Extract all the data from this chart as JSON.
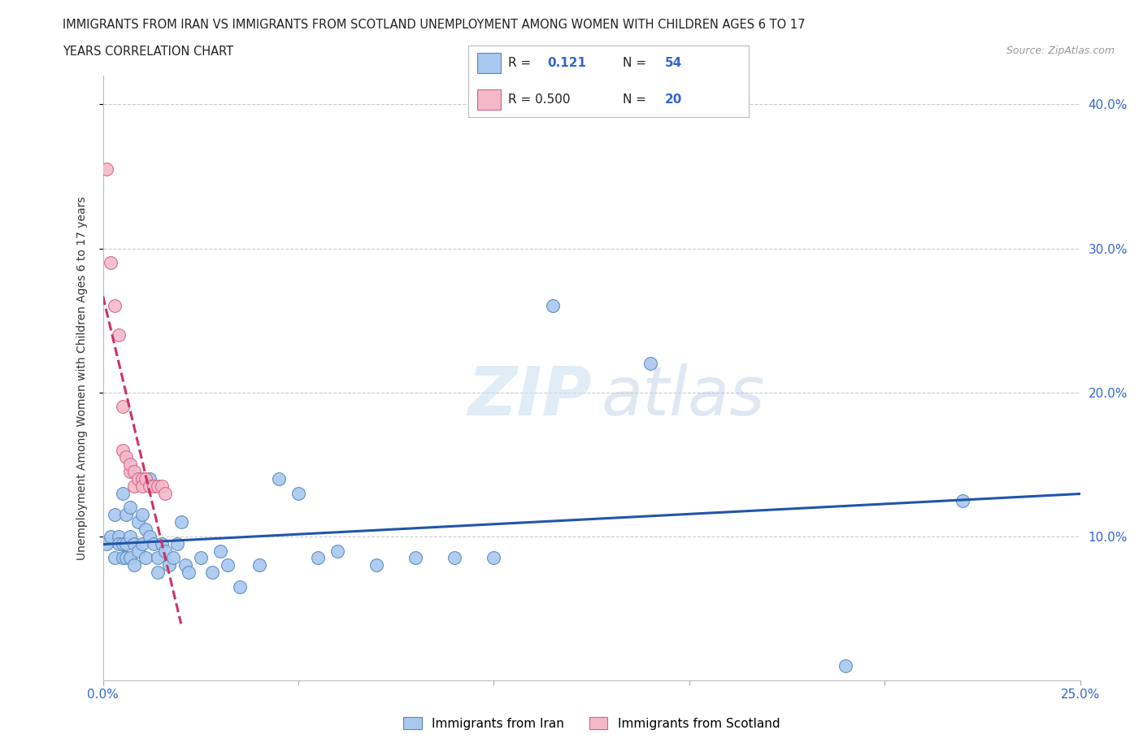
{
  "title_line1": "IMMIGRANTS FROM IRAN VS IMMIGRANTS FROM SCOTLAND UNEMPLOYMENT AMONG WOMEN WITH CHILDREN AGES 6 TO 17",
  "title_line2": "YEARS CORRELATION CHART",
  "source_text": "Source: ZipAtlas.com",
  "ylabel": "Unemployment Among Women with Children Ages 6 to 17 years",
  "xlim": [
    0.0,
    0.25
  ],
  "ylim": [
    0.0,
    0.42
  ],
  "iran_color": "#a8c8f0",
  "iran_edge_color": "#5588bb",
  "scotland_color": "#f5b8c8",
  "scotland_edge_color": "#cc6688",
  "trend_iran_color": "#2255aa",
  "trend_scotland_color": "#cc3366",
  "iran_x": [
    0.001,
    0.002,
    0.003,
    0.003,
    0.004,
    0.004,
    0.005,
    0.005,
    0.005,
    0.006,
    0.006,
    0.006,
    0.007,
    0.007,
    0.007,
    0.008,
    0.008,
    0.009,
    0.009,
    0.01,
    0.01,
    0.011,
    0.011,
    0.012,
    0.012,
    0.013,
    0.014,
    0.014,
    0.015,
    0.016,
    0.017,
    0.018,
    0.019,
    0.02,
    0.021,
    0.022,
    0.025,
    0.028,
    0.03,
    0.032,
    0.035,
    0.04,
    0.045,
    0.05,
    0.055,
    0.06,
    0.07,
    0.08,
    0.09,
    0.1,
    0.115,
    0.14,
    0.19,
    0.22
  ],
  "iran_y": [
    0.095,
    0.1,
    0.085,
    0.115,
    0.1,
    0.095,
    0.13,
    0.095,
    0.085,
    0.115,
    0.095,
    0.085,
    0.12,
    0.1,
    0.085,
    0.095,
    0.08,
    0.11,
    0.09,
    0.115,
    0.095,
    0.105,
    0.085,
    0.14,
    0.1,
    0.095,
    0.085,
    0.075,
    0.095,
    0.09,
    0.08,
    0.085,
    0.095,
    0.11,
    0.08,
    0.075,
    0.085,
    0.075,
    0.09,
    0.08,
    0.065,
    0.08,
    0.14,
    0.13,
    0.085,
    0.09,
    0.08,
    0.085,
    0.085,
    0.085,
    0.26,
    0.22,
    0.01,
    0.125
  ],
  "scotland_x": [
    0.001,
    0.002,
    0.003,
    0.004,
    0.005,
    0.005,
    0.006,
    0.007,
    0.007,
    0.008,
    0.008,
    0.009,
    0.01,
    0.01,
    0.011,
    0.012,
    0.013,
    0.014,
    0.015,
    0.016
  ],
  "scotland_y": [
    0.355,
    0.29,
    0.26,
    0.24,
    0.19,
    0.16,
    0.155,
    0.145,
    0.15,
    0.145,
    0.135,
    0.14,
    0.14,
    0.135,
    0.14,
    0.135,
    0.135,
    0.135,
    0.135,
    0.13
  ]
}
